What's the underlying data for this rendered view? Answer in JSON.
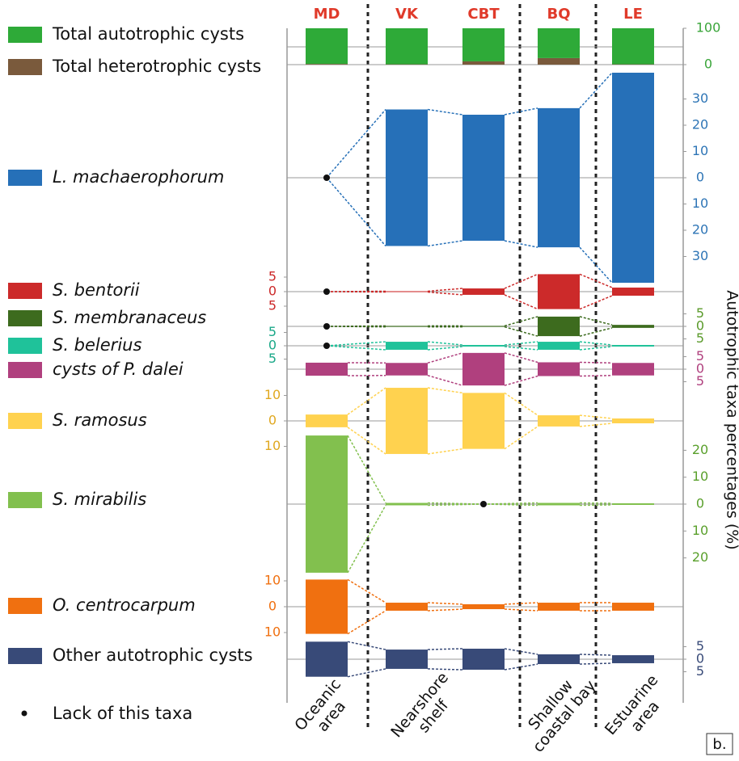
{
  "chart_data": {
    "type": "kite",
    "stations": [
      "MD",
      "VK",
      "CBT",
      "BQ",
      "LE"
    ],
    "areas": [
      [
        "Oceanic",
        "area"
      ],
      [
        "Nearshore",
        "shelf"
      ],
      [
        "Shallow",
        "coastal bay"
      ],
      [
        "Estuarine",
        "area"
      ]
    ],
    "y_axis_label": "Autotrophic taxa percentages (%)",
    "panel_label": "b.",
    "lack_label": "Lack of this taxa",
    "totals": {
      "ylim": [
        0,
        100
      ],
      "yticks": [
        100,
        0
      ],
      "tick_color": "#3aa53a",
      "series": [
        {
          "name": "Total heterotrophic cysts",
          "color": "#7a5a3c",
          "values": [
            2,
            1,
            9,
            18,
            1
          ]
        },
        {
          "name": "Total autotrophic cysts",
          "color": "#2eaa38",
          "values": [
            98,
            99,
            91,
            82,
            99
          ]
        }
      ]
    },
    "series": [
      {
        "name": "L. machaerophorum",
        "color": "#2670b8",
        "tick_color": "#2e75b6",
        "tick_side": "right",
        "values": [
          0,
          52,
          48,
          53,
          80
        ],
        "ticks": [
          30,
          20,
          10,
          0,
          {
            "value": -10,
            "label": "10"
          },
          {
            "value": -20,
            "label": "20"
          },
          {
            "value": -30,
            "label": "30"
          }
        ]
      },
      {
        "name": "S. bentorii",
        "color": "#cc2a2a",
        "tick_color": "#cc2a2a",
        "tick_side": "left",
        "values": [
          0,
          0.3,
          2.2,
          12,
          2.8
        ],
        "ticks": [
          5,
          0,
          {
            "value": -5,
            "label": "5"
          }
        ]
      },
      {
        "name": "S. membranaceus",
        "color": "#3d6b1e",
        "tick_color": "#5a9a2a",
        "tick_side": "right",
        "values": [
          0,
          0.4,
          0.4,
          7.8,
          1.2
        ],
        "ticks": [
          5,
          0,
          {
            "value": -5,
            "label": "5"
          }
        ]
      },
      {
        "name": "S. belerius",
        "color": "#1fc29a",
        "tick_color": "#1aa888",
        "tick_side": "left",
        "values": [
          0,
          3,
          0.6,
          3,
          0.6
        ],
        "ticks": [
          5,
          0,
          {
            "value": -5,
            "label": "5"
          }
        ]
      },
      {
        "name": "cysts of P. dalei",
        "color": "#b0407e",
        "tick_color": "#b0407e",
        "tick_side": "right",
        "values": [
          5.2,
          5,
          13,
          5.5,
          5
        ],
        "ticks": [
          5,
          0,
          {
            "value": -5,
            "label": "5"
          }
        ]
      },
      {
        "name": "S. ramosus",
        "color": "#ffd24f",
        "tick_color": "#e0a820",
        "tick_side": "left",
        "values": [
          5,
          26,
          22,
          4.4,
          1.9
        ],
        "ticks": [
          10,
          0,
          {
            "value": -10,
            "label": "10"
          }
        ]
      },
      {
        "name": "S. mirabilis",
        "color": "#82c04e",
        "tick_color": "#5aa02c",
        "tick_side": "right",
        "values": [
          51,
          0.9,
          0,
          0.9,
          0.6
        ],
        "ticks": [
          20,
          10,
          0,
          {
            "value": -10,
            "label": "10"
          },
          {
            "value": -20,
            "label": "20"
          }
        ]
      },
      {
        "name": "O. centrocarpum",
        "color": "#f07010",
        "tick_color": "#f07010",
        "tick_side": "left",
        "values": [
          21,
          3.1,
          1.9,
          3.1,
          3.1
        ],
        "ticks": [
          10,
          0,
          {
            "value": -10,
            "label": "10"
          }
        ]
      },
      {
        "name": "Other autotrophic cysts",
        "color": "#384a78",
        "tick_color": "#384a78",
        "tick_side": "right",
        "values": [
          14,
          7.7,
          8.4,
          3.9,
          3.2
        ],
        "ticks": [
          5,
          0,
          {
            "value": -5,
            "label": "5"
          }
        ]
      }
    ]
  }
}
